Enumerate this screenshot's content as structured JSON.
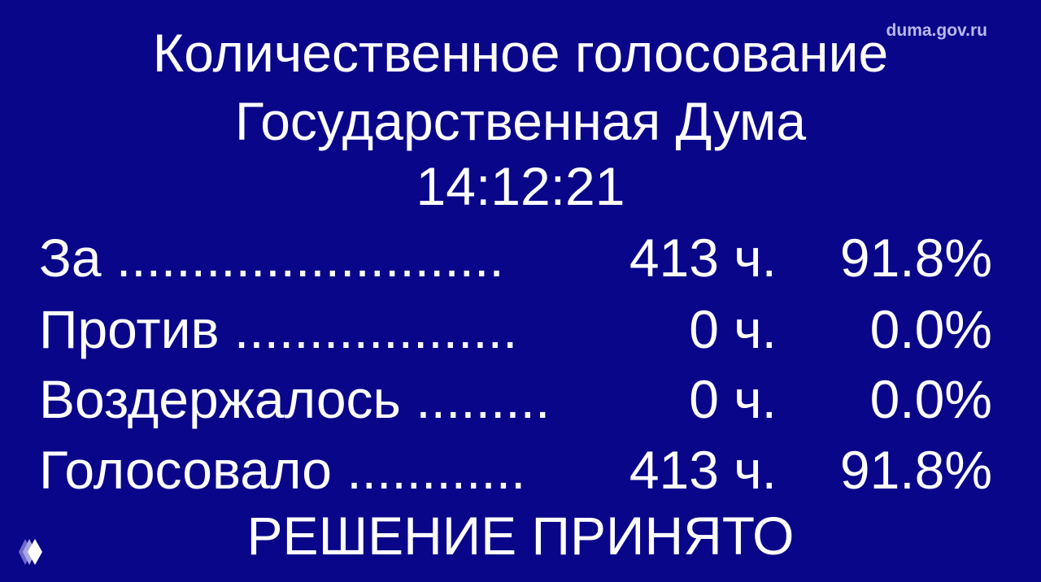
{
  "header": {
    "title": "Количественное голосование",
    "body": "Государственная Дума",
    "time": "14:12:21"
  },
  "rows": [
    {
      "label": "За",
      "leader": "..........................",
      "count": "413 ч.",
      "percent": "91.8%"
    },
    {
      "label": "Против",
      "leader": "...................",
      "count": "0 ч.",
      "percent": "0.0%"
    },
    {
      "label": "Воздержалось",
      "leader": ".........",
      "count": "0 ч.",
      "percent": "0.0%"
    },
    {
      "label": "Голосовало",
      "leader": "............",
      "count": "413 ч.",
      "percent": "91.8%"
    }
  ],
  "result": "РЕШЕНИЕ ПРИНЯТО",
  "watermark": "duma.gov.ru",
  "colors": {
    "background": "#0a068a",
    "text": "#ffffff"
  },
  "logo_icon": "diamond-stack-icon"
}
